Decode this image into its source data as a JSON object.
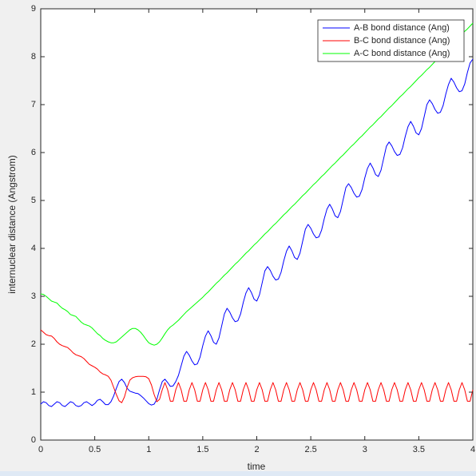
{
  "chart_data": {
    "type": "line",
    "xlabel": "time",
    "ylabel": "internuclear distance (Angstrom)",
    "xlim": [
      0,
      4
    ],
    "ylim": [
      0,
      9
    ],
    "xticks": [
      0,
      0.5,
      1,
      1.5,
      2,
      2.5,
      3,
      3.5,
      4
    ],
    "yticks": [
      0,
      1,
      2,
      3,
      4,
      5,
      6,
      7,
      8,
      9
    ],
    "grid": false,
    "legend": "upper right",
    "x": [
      0,
      0.025,
      0.05,
      0.075,
      0.1,
      0.125,
      0.15,
      0.175,
      0.2,
      0.225,
      0.25,
      0.275,
      0.3,
      0.325,
      0.35,
      0.375,
      0.4,
      0.425,
      0.45,
      0.475,
      0.5,
      0.525,
      0.55,
      0.575,
      0.6,
      0.625,
      0.65,
      0.675,
      0.7,
      0.725,
      0.75,
      0.775,
      0.8,
      0.825,
      0.85,
      0.875,
      0.9,
      0.925,
      0.95,
      0.975,
      1,
      1.025,
      1.05,
      1.075,
      1.1,
      1.125,
      1.15,
      1.175,
      1.2,
      1.225,
      1.25,
      1.275,
      1.3,
      1.325,
      1.35,
      1.375,
      1.4,
      1.425,
      1.45,
      1.475,
      1.5,
      1.525,
      1.55,
      1.575,
      1.6,
      1.625,
      1.65,
      1.675,
      1.7,
      1.725,
      1.75,
      1.775,
      1.8,
      1.825,
      1.85,
      1.875,
      1.9,
      1.925,
      1.95,
      1.975,
      2,
      2.025,
      2.05,
      2.075,
      2.1,
      2.125,
      2.15,
      2.175,
      2.2,
      2.225,
      2.25,
      2.275,
      2.3,
      2.325,
      2.35,
      2.375,
      2.4,
      2.425,
      2.45,
      2.475,
      2.5,
      2.525,
      2.55,
      2.575,
      2.6,
      2.625,
      2.65,
      2.675,
      2.7,
      2.725,
      2.75,
      2.775,
      2.8,
      2.825,
      2.85,
      2.875,
      2.9,
      2.925,
      2.95,
      2.975,
      3,
      3.025,
      3.05,
      3.075,
      3.1,
      3.125,
      3.15,
      3.175,
      3.2,
      3.225,
      3.25,
      3.275,
      3.3,
      3.325,
      3.35,
      3.375,
      3.4,
      3.425,
      3.45,
      3.475,
      3.5,
      3.525,
      3.55,
      3.575,
      3.6,
      3.625,
      3.65,
      3.675,
      3.7,
      3.725,
      3.75,
      3.775,
      3.8,
      3.825,
      3.85,
      3.875,
      3.9,
      3.925,
      3.95,
      3.975,
      4
    ],
    "series": [
      {
        "name": "A-B bond distance (Ang)",
        "color": "#0000ff",
        "values": [
          0.75,
          0.8,
          0.78,
          0.72,
          0.7,
          0.75,
          0.8,
          0.78,
          0.72,
          0.7,
          0.75,
          0.8,
          0.78,
          0.72,
          0.7,
          0.72,
          0.78,
          0.8,
          0.76,
          0.72,
          0.76,
          0.83,
          0.85,
          0.8,
          0.74,
          0.74,
          0.8,
          0.92,
          1.08,
          1.22,
          1.27,
          1.2,
          1.08,
          1.02,
          1.0,
          0.98,
          0.97,
          0.93,
          0.88,
          0.82,
          0.76,
          0.73,
          0.75,
          0.85,
          1.05,
          1.22,
          1.27,
          1.2,
          1.12,
          1.13,
          1.22,
          1.35,
          1.55,
          1.75,
          1.85,
          1.77,
          1.65,
          1.57,
          1.59,
          1.73,
          1.97,
          2.17,
          2.28,
          2.18,
          2.04,
          2.0,
          2.13,
          2.38,
          2.63,
          2.75,
          2.67,
          2.55,
          2.47,
          2.49,
          2.63,
          2.87,
          3.07,
          3.18,
          3.08,
          2.94,
          2.9,
          3.03,
          3.28,
          3.53,
          3.62,
          3.54,
          3.42,
          3.34,
          3.36,
          3.5,
          3.74,
          3.94,
          4.05,
          3.95,
          3.81,
          3.77,
          3.9,
          4.15,
          4.4,
          4.5,
          4.42,
          4.3,
          4.22,
          4.24,
          4.38,
          4.62,
          4.82,
          4.92,
          4.82,
          4.68,
          4.64,
          4.77,
          5.02,
          5.27,
          5.35,
          5.27,
          5.15,
          5.07,
          5.09,
          5.23,
          5.47,
          5.67,
          5.78,
          5.68,
          5.54,
          5.5,
          5.63,
          5.88,
          6.13,
          6.22,
          6.14,
          6.02,
          5.94,
          5.96,
          6.1,
          6.34,
          6.54,
          6.65,
          6.55,
          6.41,
          6.37,
          6.5,
          6.75,
          7.0,
          7.1,
          7.02,
          6.9,
          6.82,
          6.84,
          6.98,
          7.22,
          7.42,
          7.55,
          7.47,
          7.35,
          7.27,
          7.29,
          7.43,
          7.67,
          7.87,
          7.95
        ]
      },
      {
        "name": "B-C bond distance (Ang)",
        "color": "#ff0000",
        "values": [
          2.3,
          2.25,
          2.2,
          2.18,
          2.17,
          2.12,
          2.05,
          2.0,
          1.97,
          1.95,
          1.93,
          1.88,
          1.82,
          1.78,
          1.76,
          1.74,
          1.7,
          1.64,
          1.58,
          1.55,
          1.52,
          1.48,
          1.42,
          1.38,
          1.36,
          1.33,
          1.25,
          1.1,
          0.95,
          0.82,
          0.78,
          0.9,
          1.1,
          1.25,
          1.3,
          1.32,
          1.33,
          1.33,
          1.33,
          1.32,
          1.28,
          1.15,
          0.95,
          0.8,
          0.85,
          1.05,
          1.2,
          1.05,
          0.81,
          0.81,
          1.05,
          1.2,
          1.05,
          0.81,
          0.81,
          1.05,
          1.2,
          1.05,
          0.81,
          0.81,
          1.05,
          1.2,
          1.05,
          0.81,
          0.81,
          1.05,
          1.2,
          1.05,
          0.81,
          0.81,
          1.05,
          1.2,
          1.05,
          0.81,
          0.81,
          1.05,
          1.2,
          1.05,
          0.81,
          0.81,
          1.05,
          1.2,
          1.05,
          0.81,
          0.81,
          1.05,
          1.2,
          1.05,
          0.81,
          0.81,
          1.05,
          1.2,
          1.05,
          0.81,
          0.81,
          1.05,
          1.2,
          1.05,
          0.81,
          0.81,
          1.05,
          1.2,
          1.05,
          0.81,
          0.81,
          1.05,
          1.2,
          1.05,
          0.81,
          0.81,
          1.05,
          1.2,
          1.05,
          0.81,
          0.81,
          1.05,
          1.2,
          1.05,
          0.81,
          0.81,
          1.05,
          1.2,
          1.05,
          0.81,
          0.81,
          1.05,
          1.2,
          1.05,
          0.81,
          0.81,
          1.05,
          1.2,
          1.05,
          0.81,
          0.81,
          1.05,
          1.2,
          1.05,
          0.81,
          0.81,
          1.05,
          1.2,
          1.05,
          0.81,
          0.81,
          1.05,
          1.2,
          1.05,
          0.81,
          0.81,
          1.05,
          1.2,
          1.05,
          0.81,
          0.81,
          1.05,
          1.2,
          1.05,
          0.81,
          0.81,
          1.05
        ]
      },
      {
        "name": "A-C bond distance (Ang)",
        "color": "#00ff00",
        "values": [
          3.05,
          3.04,
          3.0,
          2.95,
          2.9,
          2.88,
          2.86,
          2.8,
          2.75,
          2.72,
          2.68,
          2.62,
          2.6,
          2.58,
          2.52,
          2.46,
          2.42,
          2.4,
          2.38,
          2.34,
          2.28,
          2.22,
          2.18,
          2.12,
          2.08,
          2.05,
          2.03,
          2.03,
          2.05,
          2.1,
          2.15,
          2.2,
          2.25,
          2.3,
          2.33,
          2.33,
          2.3,
          2.25,
          2.18,
          2.1,
          2.03,
          2.0,
          1.98,
          2.0,
          2.05,
          2.13,
          2.22,
          2.3,
          2.36,
          2.4,
          2.45,
          2.5,
          2.56,
          2.62,
          2.68,
          2.73,
          2.78,
          2.83,
          2.88,
          2.93,
          2.98,
          3.04,
          3.09,
          3.15,
          3.21,
          3.27,
          3.32,
          3.38,
          3.44,
          3.49,
          3.55,
          3.61,
          3.67,
          3.72,
          3.78,
          3.84,
          3.9,
          3.95,
          4.01,
          4.07,
          4.12,
          4.18,
          4.24,
          4.3,
          4.35,
          4.41,
          4.47,
          4.52,
          4.58,
          4.64,
          4.7,
          4.75,
          4.81,
          4.87,
          4.92,
          4.98,
          5.04,
          5.1,
          5.15,
          5.21,
          5.27,
          5.33,
          5.38,
          5.44,
          5.5,
          5.55,
          5.61,
          5.67,
          5.73,
          5.78,
          5.84,
          5.9,
          5.95,
          6.01,
          6.07,
          6.13,
          6.18,
          6.24,
          6.3,
          6.35,
          6.41,
          6.47,
          6.53,
          6.58,
          6.64,
          6.7,
          6.75,
          6.81,
          6.87,
          6.93,
          6.98,
          7.04,
          7.1,
          7.16,
          7.21,
          7.27,
          7.33,
          7.38,
          7.44,
          7.5,
          7.56,
          7.61,
          7.67,
          7.73,
          7.78,
          7.84,
          7.9,
          7.96,
          8.01,
          8.07,
          8.13,
          8.18,
          8.24,
          8.3,
          8.36,
          8.41,
          8.47,
          8.53,
          8.58,
          8.64,
          8.7
        ]
      }
    ]
  }
}
